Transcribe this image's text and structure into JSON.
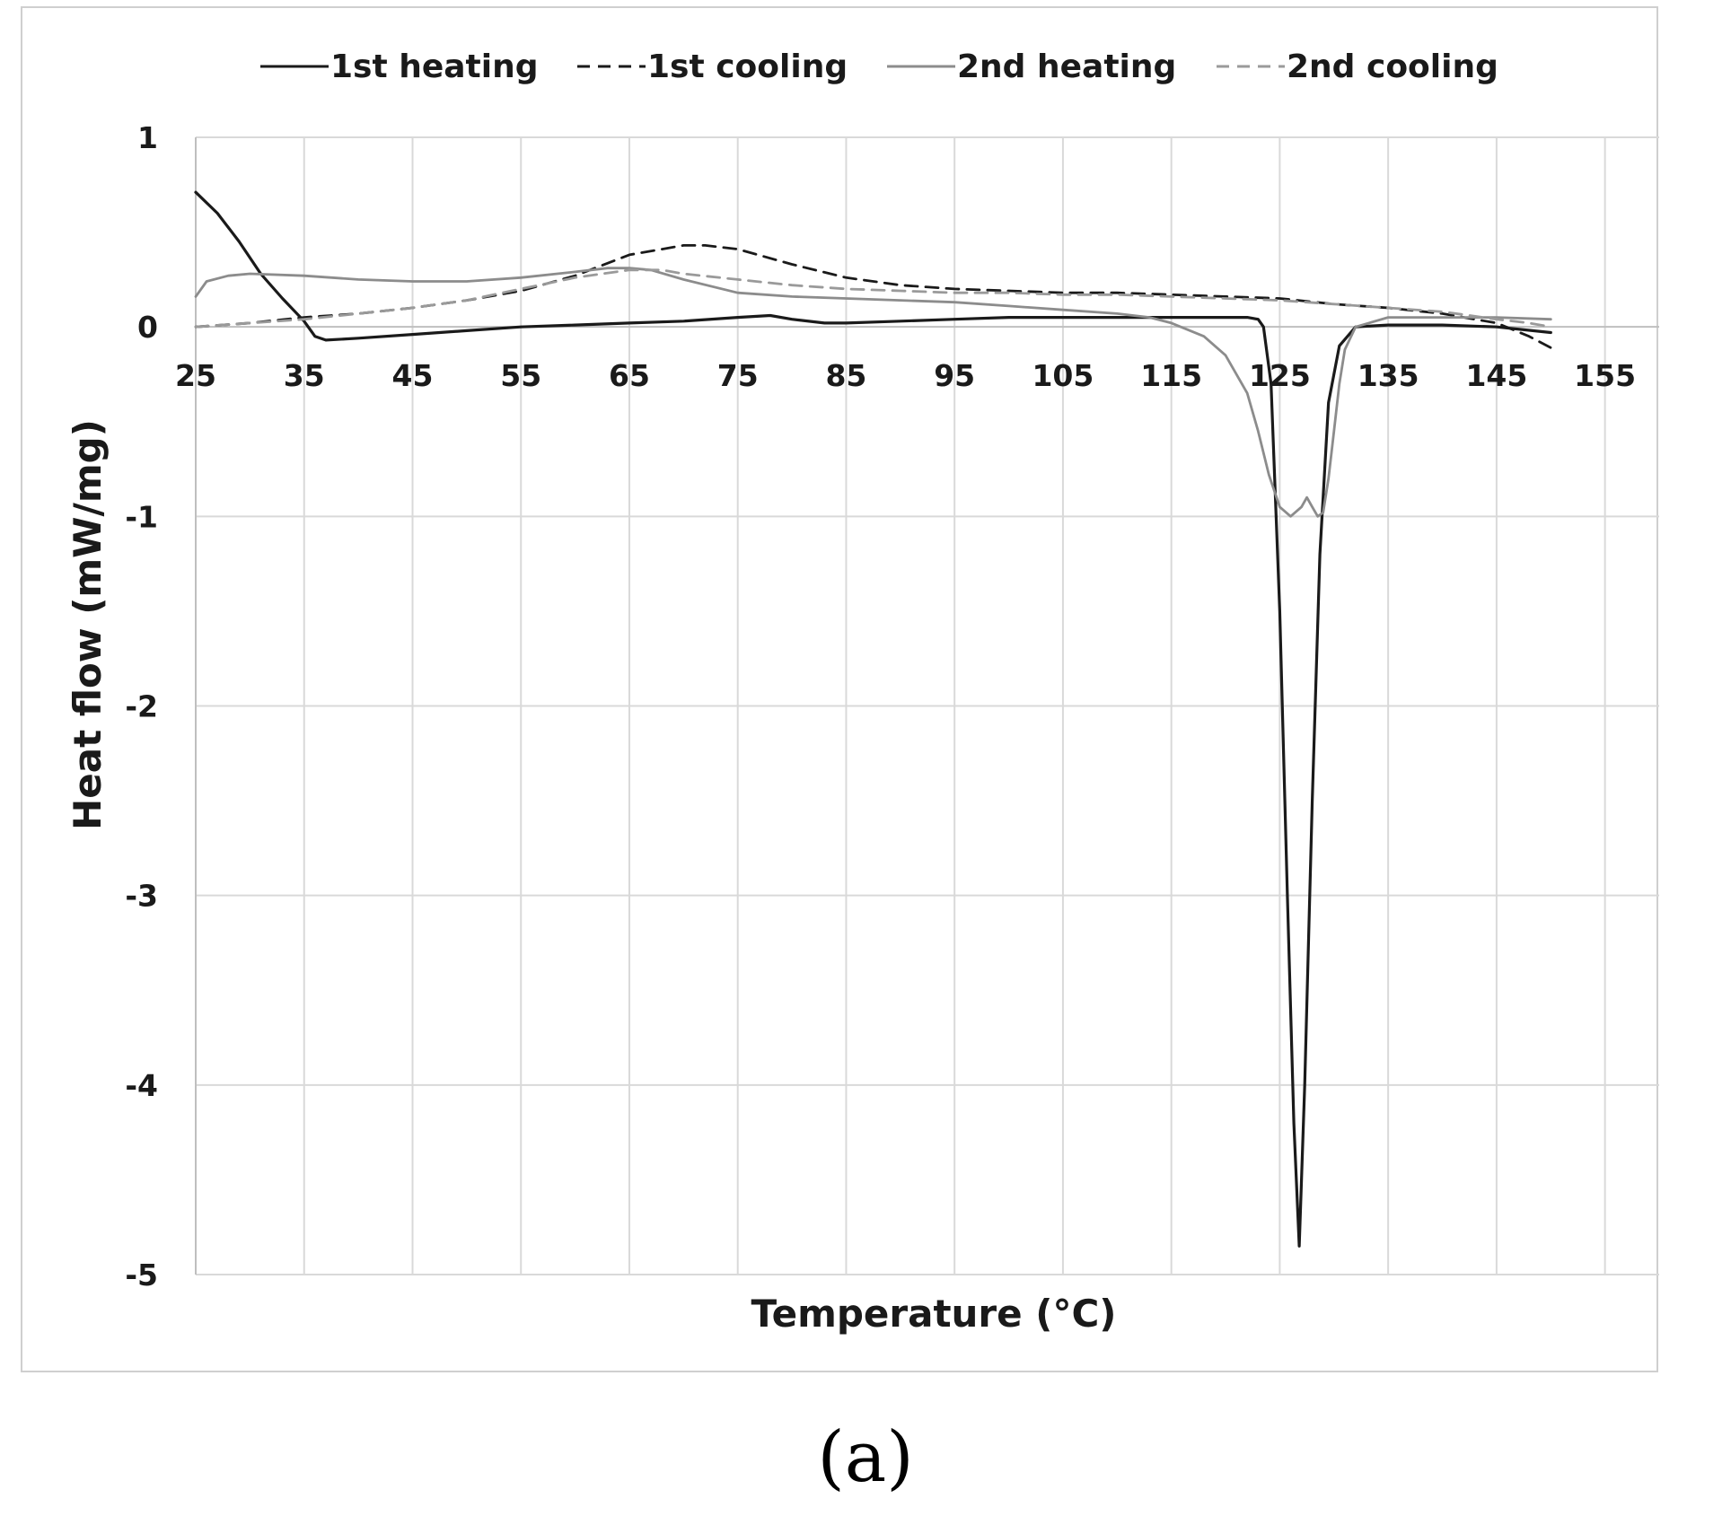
{
  "chart_data": {
    "type": "line",
    "xlabel": "Temperature (°C)",
    "ylabel": "Heat flow (mW/mg)",
    "xlim": [
      25,
      160
    ],
    "ylim": [
      -5,
      1
    ],
    "x_ticks": [
      25,
      35,
      45,
      55,
      65,
      75,
      85,
      95,
      105,
      115,
      125,
      135,
      145,
      155
    ],
    "y_ticks": [
      1,
      0,
      -1,
      -2,
      -3,
      -4,
      -5
    ],
    "grid": true,
    "legend_position": "top",
    "panel_label": "(a)",
    "series": [
      {
        "name": "1st heating",
        "color": "#1a1a1a",
        "dash": "solid",
        "x": [
          25,
          27,
          29,
          31,
          33,
          35,
          36,
          37,
          40,
          45,
          50,
          55,
          60,
          65,
          70,
          75,
          78,
          80,
          83,
          85,
          90,
          95,
          100,
          105,
          110,
          115,
          120,
          122,
          123,
          123.5,
          124.2,
          125,
          125.7,
          126.3,
          126.8,
          127.3,
          128,
          128.7,
          129.5,
          130.5,
          132,
          135,
          140,
          145,
          150
        ],
        "y": [
          0.71,
          0.6,
          0.45,
          0.28,
          0.15,
          0.03,
          -0.05,
          -0.07,
          -0.06,
          -0.04,
          -0.02,
          0.0,
          0.01,
          0.02,
          0.03,
          0.05,
          0.06,
          0.04,
          0.02,
          0.02,
          0.03,
          0.04,
          0.05,
          0.05,
          0.05,
          0.05,
          0.05,
          0.05,
          0.04,
          0.0,
          -0.3,
          -1.5,
          -3.0,
          -4.2,
          -4.85,
          -4.0,
          -2.5,
          -1.2,
          -0.4,
          -0.1,
          0.0,
          0.01,
          0.01,
          0.0,
          -0.03
        ]
      },
      {
        "name": "1st cooling",
        "color": "#1a1a1a",
        "dash": "dashed",
        "x": [
          25,
          30,
          35,
          40,
          45,
          50,
          55,
          60,
          65,
          70,
          72,
          75,
          80,
          85,
          90,
          95,
          100,
          105,
          110,
          115,
          120,
          125,
          130,
          135,
          140,
          145,
          148,
          150
        ],
        "y": [
          0.0,
          0.02,
          0.05,
          0.07,
          0.1,
          0.14,
          0.19,
          0.27,
          0.38,
          0.43,
          0.43,
          0.41,
          0.33,
          0.26,
          0.22,
          0.2,
          0.19,
          0.18,
          0.18,
          0.17,
          0.16,
          0.15,
          0.12,
          0.1,
          0.07,
          0.02,
          -0.05,
          -0.11
        ]
      },
      {
        "name": "2nd heating",
        "color": "#8c8c8c",
        "dash": "solid",
        "x": [
          25,
          26,
          28,
          30,
          35,
          40,
          45,
          50,
          55,
          60,
          63,
          65,
          67,
          70,
          75,
          80,
          85,
          90,
          95,
          100,
          105,
          110,
          113,
          115,
          118,
          120,
          122,
          123,
          124,
          125,
          126,
          127,
          127.5,
          128,
          128.5,
          129,
          129.5,
          130,
          130.5,
          131,
          132,
          135,
          140,
          145,
          150
        ],
        "y": [
          0.16,
          0.24,
          0.27,
          0.28,
          0.27,
          0.25,
          0.24,
          0.24,
          0.26,
          0.29,
          0.31,
          0.31,
          0.3,
          0.25,
          0.18,
          0.16,
          0.15,
          0.14,
          0.13,
          0.11,
          0.09,
          0.07,
          0.05,
          0.02,
          -0.05,
          -0.15,
          -0.35,
          -0.55,
          -0.78,
          -0.95,
          -1.0,
          -0.95,
          -0.9,
          -0.95,
          -1.0,
          -0.98,
          -0.8,
          -0.55,
          -0.3,
          -0.12,
          0.0,
          0.05,
          0.05,
          0.05,
          0.04
        ]
      },
      {
        "name": "2nd cooling",
        "color": "#9a9a9a",
        "dash": "dashed",
        "x": [
          25,
          30,
          35,
          40,
          45,
          50,
          55,
          60,
          65,
          68,
          70,
          75,
          80,
          85,
          90,
          95,
          100,
          105,
          110,
          115,
          120,
          125,
          130,
          135,
          140,
          145,
          148,
          150
        ],
        "y": [
          0.0,
          0.02,
          0.04,
          0.07,
          0.1,
          0.14,
          0.2,
          0.26,
          0.3,
          0.3,
          0.28,
          0.25,
          0.22,
          0.2,
          0.19,
          0.18,
          0.18,
          0.17,
          0.17,
          0.16,
          0.15,
          0.14,
          0.12,
          0.1,
          0.08,
          0.04,
          0.02,
          0.0
        ]
      }
    ]
  }
}
